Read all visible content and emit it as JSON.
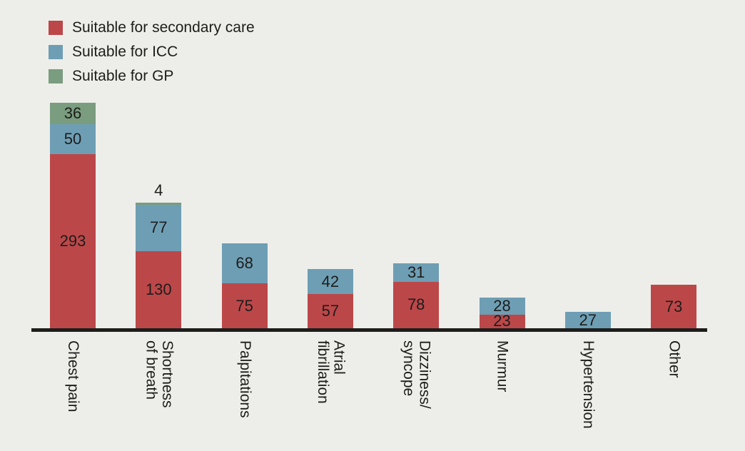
{
  "colors": {
    "background": "#edeee9",
    "axis": "#1d1d1b",
    "text": "#1d1d1b",
    "secondary_care": "#bc4749",
    "icc": "#6e9eb4",
    "gp": "#7a9c7f"
  },
  "legend": {
    "items": [
      {
        "label": "Suitable for secondary care",
        "color": "#bc4749"
      },
      {
        "label": "Suitable for ICC",
        "color": "#6e9eb4"
      },
      {
        "label": "Suitable for GP",
        "color": "#7a9c7f"
      }
    ]
  },
  "chart_data": {
    "type": "bar",
    "stacked": true,
    "orientation": "vertical",
    "title": "",
    "xlabel": "",
    "ylabel": "",
    "grid": false,
    "legend_position": "top-left",
    "y_axis_visible": false,
    "x_tick_label_rotation": 90,
    "categories": [
      "Chest pain",
      "Shortness of breath",
      "Palpitations",
      "Atrial fibrillation",
      "Dizziness/syncope",
      "Murmur",
      "Hypertension",
      "Other"
    ],
    "category_label_lines": [
      [
        "Chest pain"
      ],
      [
        "Shortness",
        "of breath"
      ],
      [
        "Palpitations"
      ],
      [
        "Atrial",
        "fibrillation"
      ],
      [
        "Dizziness/",
        "syncope"
      ],
      [
        "Murmur"
      ],
      [
        "Hypertension"
      ],
      [
        "Other"
      ]
    ],
    "series": [
      {
        "name": "Suitable for secondary care",
        "color": "#bc4749",
        "values": [
          293,
          130,
          75,
          57,
          78,
          23,
          0,
          73
        ]
      },
      {
        "name": "Suitable for ICC",
        "color": "#6e9eb4",
        "values": [
          50,
          77,
          68,
          42,
          31,
          28,
          27,
          0
        ]
      },
      {
        "name": "Suitable for GP",
        "color": "#7a9c7f",
        "values": [
          36,
          4,
          0,
          0,
          0,
          0,
          0,
          0
        ]
      }
    ],
    "totals": [
      379,
      211,
      143,
      99,
      109,
      51,
      27,
      73
    ],
    "data_labels": true
  }
}
